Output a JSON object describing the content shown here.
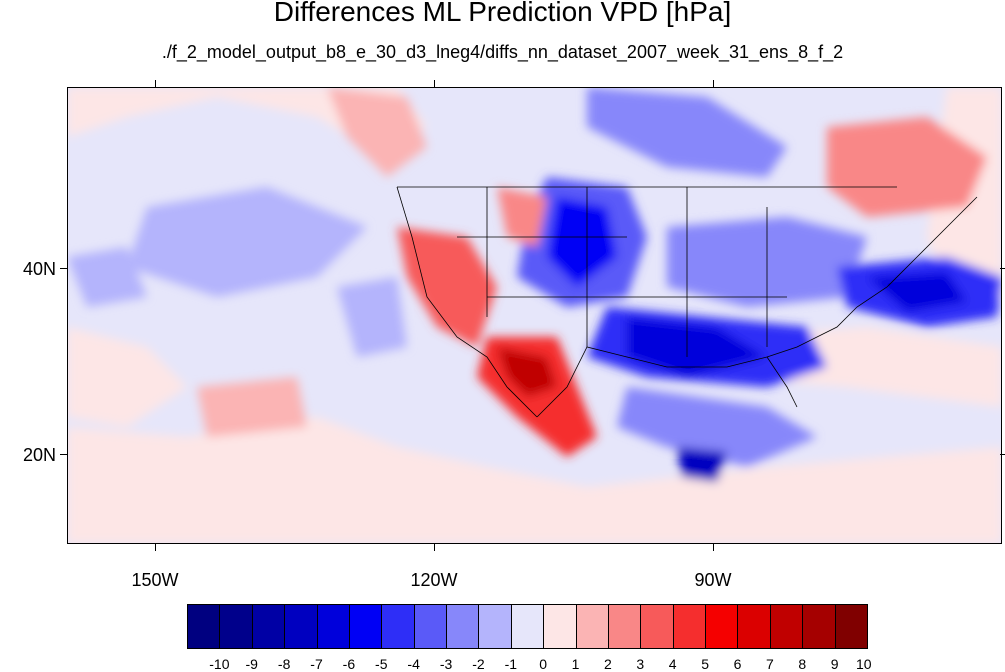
{
  "title": "Differences ML Prediction VPD [hPa]",
  "subtitle": "./f_2_model_output_b8_e_30_d3_lneg4/diffs_nn_dataset_2007_week_31_ens_8_f_2",
  "lat_labels": [
    "40N",
    "20N"
  ],
  "lon_labels": [
    "150W",
    "120W",
    "90W"
  ],
  "colorbar": {
    "labels": [
      "-10",
      "-9",
      "-8",
      "-7",
      "-6",
      "-5",
      "-4",
      "-3",
      "-2",
      "-1",
      "0",
      "1",
      "2",
      "3",
      "4",
      "5",
      "6",
      "7",
      "8",
      "9",
      "10"
    ],
    "colors": [
      "#000080",
      "#00008b",
      "#0000a5",
      "#0000c0",
      "#0000db",
      "#0000f5",
      "#2e2ef7",
      "#5a5af8",
      "#8787fa",
      "#b4b4fc",
      "#e6e6fa",
      "#fde6e6",
      "#fbb4b4",
      "#f98787",
      "#f75a5a",
      "#f52e2e",
      "#f50000",
      "#db0000",
      "#c00000",
      "#a50000",
      "#800000"
    ]
  }
}
